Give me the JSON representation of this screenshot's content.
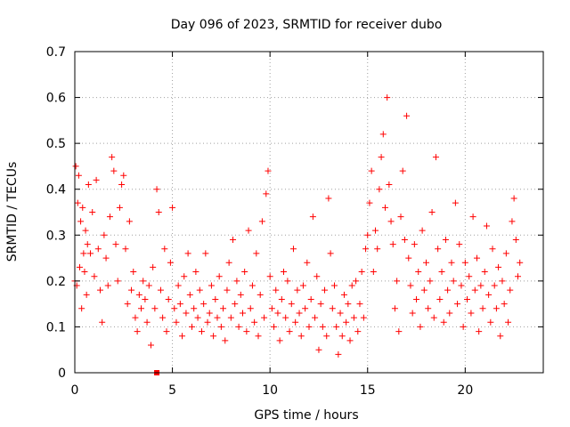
{
  "chart_data": {
    "type": "scatter",
    "title": "Day 096 of 2023, SRMTID for receiver dubo",
    "xlabel": "GPS time / hours",
    "ylabel": "SRMTID / TECUs",
    "xlim": [
      0,
      24
    ],
    "ylim": [
      0,
      0.7
    ],
    "x_ticks": [
      0,
      5,
      10,
      15,
      20
    ],
    "x_tick_labels": [
      "0",
      "5",
      "10",
      "15",
      "20"
    ],
    "y_ticks": [
      0,
      0.1,
      0.2,
      0.3,
      0.4,
      0.5,
      0.6,
      0.7
    ],
    "y_tick_labels": [
      "0",
      "0.1",
      "0.2",
      "0.3",
      "0.4",
      "0.5",
      "0.6",
      "0.7"
    ],
    "grid": true,
    "marker": "+",
    "color": "#ff0000",
    "outlier_point": {
      "x": 4.2,
      "y": 0.0
    },
    "series": [
      {
        "name": "SRMTID",
        "points": [
          [
            0.0,
            0.2
          ],
          [
            0.05,
            0.45
          ],
          [
            0.1,
            0.19
          ],
          [
            0.15,
            0.37
          ],
          [
            0.2,
            0.43
          ],
          [
            0.25,
            0.23
          ],
          [
            0.3,
            0.33
          ],
          [
            0.35,
            0.14
          ],
          [
            0.4,
            0.36
          ],
          [
            0.45,
            0.26
          ],
          [
            0.5,
            0.22
          ],
          [
            0.55,
            0.31
          ],
          [
            0.6,
            0.17
          ],
          [
            0.65,
            0.28
          ],
          [
            0.7,
            0.41
          ],
          [
            0.8,
            0.26
          ],
          [
            0.9,
            0.35
          ],
          [
            1.0,
            0.21
          ],
          [
            1.1,
            0.42
          ],
          [
            1.2,
            0.27
          ],
          [
            1.3,
            0.18
          ],
          [
            1.4,
            0.11
          ],
          [
            1.5,
            0.3
          ],
          [
            1.6,
            0.25
          ],
          [
            1.7,
            0.19
          ],
          [
            1.8,
            0.34
          ],
          [
            1.9,
            0.47
          ],
          [
            2.0,
            0.44
          ],
          [
            2.1,
            0.28
          ],
          [
            2.2,
            0.2
          ],
          [
            2.3,
            0.36
          ],
          [
            2.4,
            0.41
          ],
          [
            2.5,
            0.43
          ],
          [
            2.6,
            0.27
          ],
          [
            2.7,
            0.15
          ],
          [
            2.8,
            0.33
          ],
          [
            2.9,
            0.18
          ],
          [
            3.0,
            0.22
          ],
          [
            3.1,
            0.12
          ],
          [
            3.2,
            0.09
          ],
          [
            3.3,
            0.17
          ],
          [
            3.4,
            0.14
          ],
          [
            3.5,
            0.2
          ],
          [
            3.6,
            0.16
          ],
          [
            3.7,
            0.11
          ],
          [
            3.8,
            0.19
          ],
          [
            3.9,
            0.06
          ],
          [
            4.0,
            0.23
          ],
          [
            4.1,
            0.14
          ],
          [
            4.2,
            0.4
          ],
          [
            4.3,
            0.35
          ],
          [
            4.4,
            0.18
          ],
          [
            4.5,
            0.12
          ],
          [
            4.6,
            0.27
          ],
          [
            4.7,
            0.09
          ],
          [
            4.8,
            0.16
          ],
          [
            4.9,
            0.24
          ],
          [
            5.0,
            0.36
          ],
          [
            5.1,
            0.14
          ],
          [
            5.2,
            0.11
          ],
          [
            5.3,
            0.19
          ],
          [
            5.4,
            0.15
          ],
          [
            5.5,
            0.08
          ],
          [
            5.6,
            0.21
          ],
          [
            5.7,
            0.13
          ],
          [
            5.8,
            0.26
          ],
          [
            5.9,
            0.17
          ],
          [
            6.0,
            0.1
          ],
          [
            6.1,
            0.14
          ],
          [
            6.2,
            0.22
          ],
          [
            6.3,
            0.12
          ],
          [
            6.4,
            0.18
          ],
          [
            6.5,
            0.09
          ],
          [
            6.6,
            0.15
          ],
          [
            6.7,
            0.26
          ],
          [
            6.8,
            0.11
          ],
          [
            6.9,
            0.13
          ],
          [
            7.0,
            0.19
          ],
          [
            7.1,
            0.08
          ],
          [
            7.2,
            0.16
          ],
          [
            7.3,
            0.12
          ],
          [
            7.4,
            0.21
          ],
          [
            7.5,
            0.1
          ],
          [
            7.6,
            0.14
          ],
          [
            7.7,
            0.07
          ],
          [
            7.8,
            0.18
          ],
          [
            7.9,
            0.24
          ],
          [
            8.0,
            0.12
          ],
          [
            8.1,
            0.29
          ],
          [
            8.2,
            0.15
          ],
          [
            8.3,
            0.2
          ],
          [
            8.4,
            0.1
          ],
          [
            8.5,
            0.17
          ],
          [
            8.6,
            0.13
          ],
          [
            8.7,
            0.22
          ],
          [
            8.8,
            0.09
          ],
          [
            8.9,
            0.31
          ],
          [
            9.0,
            0.14
          ],
          [
            9.1,
            0.19
          ],
          [
            9.2,
            0.11
          ],
          [
            9.3,
            0.26
          ],
          [
            9.4,
            0.08
          ],
          [
            9.5,
            0.17
          ],
          [
            9.6,
            0.33
          ],
          [
            9.7,
            0.12
          ],
          [
            9.8,
            0.39
          ],
          [
            9.9,
            0.44
          ],
          [
            10.0,
            0.21
          ],
          [
            10.1,
            0.14
          ],
          [
            10.2,
            0.1
          ],
          [
            10.3,
            0.18
          ],
          [
            10.4,
            0.13
          ],
          [
            10.5,
            0.07
          ],
          [
            10.6,
            0.16
          ],
          [
            10.7,
            0.22
          ],
          [
            10.8,
            0.12
          ],
          [
            10.9,
            0.2
          ],
          [
            11.0,
            0.09
          ],
          [
            11.1,
            0.15
          ],
          [
            11.2,
            0.27
          ],
          [
            11.3,
            0.11
          ],
          [
            11.4,
            0.18
          ],
          [
            11.5,
            0.13
          ],
          [
            11.6,
            0.08
          ],
          [
            11.7,
            0.19
          ],
          [
            11.8,
            0.14
          ],
          [
            11.9,
            0.24
          ],
          [
            12.0,
            0.1
          ],
          [
            12.1,
            0.16
          ],
          [
            12.2,
            0.34
          ],
          [
            12.3,
            0.12
          ],
          [
            12.4,
            0.21
          ],
          [
            12.5,
            0.05
          ],
          [
            12.6,
            0.15
          ],
          [
            12.7,
            0.1
          ],
          [
            12.8,
            0.18
          ],
          [
            12.9,
            0.08
          ],
          [
            13.0,
            0.38
          ],
          [
            13.1,
            0.26
          ],
          [
            13.2,
            0.14
          ],
          [
            13.3,
            0.19
          ],
          [
            13.4,
            0.1
          ],
          [
            13.5,
            0.04
          ],
          [
            13.6,
            0.13
          ],
          [
            13.7,
            0.08
          ],
          [
            13.8,
            0.17
          ],
          [
            13.9,
            0.11
          ],
          [
            14.0,
            0.15
          ],
          [
            14.1,
            0.07
          ],
          [
            14.2,
            0.19
          ],
          [
            14.3,
            0.12
          ],
          [
            14.4,
            0.2
          ],
          [
            14.5,
            0.09
          ],
          [
            14.6,
            0.15
          ],
          [
            14.7,
            0.22
          ],
          [
            14.8,
            0.12
          ],
          [
            14.9,
            0.27
          ],
          [
            15.0,
            0.3
          ],
          [
            15.1,
            0.37
          ],
          [
            15.2,
            0.44
          ],
          [
            15.3,
            0.22
          ],
          [
            15.4,
            0.31
          ],
          [
            15.5,
            0.27
          ],
          [
            15.6,
            0.4
          ],
          [
            15.7,
            0.47
          ],
          [
            15.8,
            0.52
          ],
          [
            15.9,
            0.36
          ],
          [
            16.0,
            0.6
          ],
          [
            16.1,
            0.41
          ],
          [
            16.2,
            0.33
          ],
          [
            16.3,
            0.28
          ],
          [
            16.4,
            0.14
          ],
          [
            16.5,
            0.2
          ],
          [
            16.6,
            0.09
          ],
          [
            16.7,
            0.34
          ],
          [
            16.8,
            0.44
          ],
          [
            16.9,
            0.29
          ],
          [
            17.0,
            0.56
          ],
          [
            17.1,
            0.25
          ],
          [
            17.2,
            0.19
          ],
          [
            17.3,
            0.13
          ],
          [
            17.4,
            0.28
          ],
          [
            17.5,
            0.16
          ],
          [
            17.6,
            0.22
          ],
          [
            17.7,
            0.1
          ],
          [
            17.8,
            0.31
          ],
          [
            17.9,
            0.18
          ],
          [
            18.0,
            0.24
          ],
          [
            18.1,
            0.14
          ],
          [
            18.2,
            0.2
          ],
          [
            18.3,
            0.35
          ],
          [
            18.4,
            0.12
          ],
          [
            18.5,
            0.47
          ],
          [
            18.6,
            0.27
          ],
          [
            18.7,
            0.16
          ],
          [
            18.8,
            0.22
          ],
          [
            18.9,
            0.11
          ],
          [
            19.0,
            0.29
          ],
          [
            19.1,
            0.18
          ],
          [
            19.2,
            0.13
          ],
          [
            19.3,
            0.24
          ],
          [
            19.4,
            0.2
          ],
          [
            19.5,
            0.37
          ],
          [
            19.6,
            0.15
          ],
          [
            19.7,
            0.28
          ],
          [
            19.8,
            0.19
          ],
          [
            19.9,
            0.1
          ],
          [
            20.0,
            0.24
          ],
          [
            20.1,
            0.16
          ],
          [
            20.2,
            0.21
          ],
          [
            20.3,
            0.13
          ],
          [
            20.4,
            0.34
          ],
          [
            20.5,
            0.18
          ],
          [
            20.6,
            0.25
          ],
          [
            20.7,
            0.09
          ],
          [
            20.8,
            0.19
          ],
          [
            20.9,
            0.14
          ],
          [
            21.0,
            0.22
          ],
          [
            21.1,
            0.32
          ],
          [
            21.2,
            0.17
          ],
          [
            21.3,
            0.11
          ],
          [
            21.4,
            0.27
          ],
          [
            21.5,
            0.19
          ],
          [
            21.6,
            0.14
          ],
          [
            21.7,
            0.23
          ],
          [
            21.8,
            0.08
          ],
          [
            21.9,
            0.2
          ],
          [
            22.0,
            0.15
          ],
          [
            22.1,
            0.26
          ],
          [
            22.2,
            0.11
          ],
          [
            22.3,
            0.18
          ],
          [
            22.4,
            0.33
          ],
          [
            22.5,
            0.38
          ],
          [
            22.6,
            0.29
          ],
          [
            22.7,
            0.21
          ],
          [
            22.8,
            0.24
          ]
        ]
      }
    ]
  }
}
